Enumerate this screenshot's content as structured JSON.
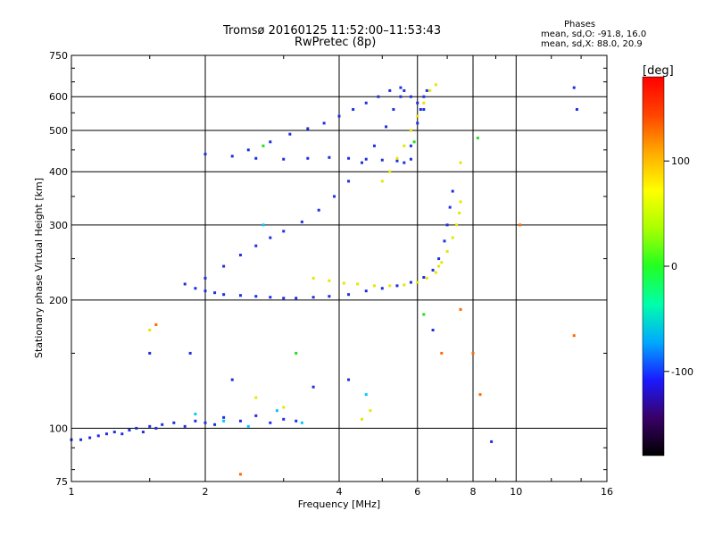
{
  "header": {
    "title_line1": "Tromsø 20160125 11:52:00–11:53:43",
    "title_line2": "RwPretec (8p)",
    "legend_title": "Phases",
    "legend_o": "mean, sd,O: -91.8, 16.0",
    "legend_x": "mean, sd,X:  88.0, 20.9"
  },
  "colorbar": {
    "label": "[deg]",
    "ticks": [
      {
        "value": 100,
        "label": "100"
      },
      {
        "value": 0,
        "label": "0"
      },
      {
        "value": -100,
        "label": "-100"
      }
    ],
    "range": [
      -180,
      180
    ],
    "colors": [
      "#000000",
      "#3a0066",
      "#1a1aff",
      "#00aaff",
      "#00ffaa",
      "#22ff22",
      "#aaff00",
      "#ffff00",
      "#ffaa00",
      "#ff4400",
      "#ff0000"
    ]
  },
  "chart_data": {
    "type": "scatter",
    "title": "Tromsø 20160125 11:52:00–11:53:43",
    "subtitle": "RwPretec (8p)",
    "xlabel": "Frequency [MHz]",
    "ylabel": "Stationary phase Virtual Height [km]",
    "x_scale": "log",
    "y_scale": "log",
    "xlim": [
      1,
      16
    ],
    "ylim": [
      75,
      750
    ],
    "grid": true,
    "x_ticks": [
      {
        "value": 1,
        "label": "1"
      },
      {
        "value": 2,
        "label": "2"
      },
      {
        "value": 4,
        "label": "4"
      },
      {
        "value": 6,
        "label": "6"
      },
      {
        "value": 8,
        "label": "8"
      },
      {
        "value": 10,
        "label": "10"
      },
      {
        "value": 16,
        "label": "16"
      }
    ],
    "y_ticks": [
      {
        "value": 75,
        "label": "75"
      },
      {
        "value": 100,
        "label": "100"
      },
      {
        "value": 200,
        "label": "200"
      },
      {
        "value": 300,
        "label": "300"
      },
      {
        "value": 400,
        "label": "400"
      },
      {
        "value": 500,
        "label": "500"
      },
      {
        "value": 600,
        "label": "600"
      },
      {
        "value": 750,
        "label": "750"
      }
    ],
    "series": [
      {
        "name": "",
        "color": "#1e2fe0",
        "points": [
          [
            1.0,
            94
          ],
          [
            1.05,
            94
          ],
          [
            1.1,
            95
          ],
          [
            1.15,
            96
          ],
          [
            1.2,
            97
          ],
          [
            1.25,
            98
          ],
          [
            1.3,
            97
          ],
          [
            1.35,
            99
          ],
          [
            1.4,
            100
          ],
          [
            1.45,
            98
          ],
          [
            1.5,
            101
          ],
          [
            1.55,
            100
          ],
          [
            1.6,
            102
          ],
          [
            1.7,
            103
          ],
          [
            1.8,
            101
          ],
          [
            1.9,
            104
          ],
          [
            2.0,
            103
          ],
          [
            2.1,
            102
          ],
          [
            2.2,
            106
          ],
          [
            2.4,
            104
          ],
          [
            2.6,
            107
          ],
          [
            2.8,
            103
          ],
          [
            3.0,
            105
          ],
          [
            3.2,
            104
          ],
          [
            1.8,
            218
          ],
          [
            1.9,
            213
          ],
          [
            2.0,
            210
          ],
          [
            2.1,
            208
          ],
          [
            2.2,
            206
          ],
          [
            2.4,
            205
          ],
          [
            2.6,
            204
          ],
          [
            2.8,
            203
          ],
          [
            3.0,
            202
          ],
          [
            3.2,
            202
          ],
          [
            3.5,
            203
          ],
          [
            3.8,
            204
          ],
          [
            4.2,
            206
          ],
          [
            4.6,
            210
          ],
          [
            5.0,
            213
          ],
          [
            5.4,
            216
          ],
          [
            5.8,
            220
          ],
          [
            6.2,
            226
          ],
          [
            6.5,
            235
          ],
          [
            6.7,
            250
          ],
          [
            6.9,
            275
          ],
          [
            7.0,
            300
          ],
          [
            7.1,
            330
          ],
          [
            7.2,
            360
          ],
          [
            2.0,
            225
          ],
          [
            2.2,
            240
          ],
          [
            2.4,
            255
          ],
          [
            2.6,
            268
          ],
          [
            2.8,
            280
          ],
          [
            3.0,
            290
          ],
          [
            3.3,
            305
          ],
          [
            3.6,
            325
          ],
          [
            3.9,
            350
          ],
          [
            4.2,
            380
          ],
          [
            4.5,
            420
          ],
          [
            4.8,
            460
          ],
          [
            5.1,
            510
          ],
          [
            5.3,
            560
          ],
          [
            5.5,
            600
          ],
          [
            5.6,
            620
          ],
          [
            2.0,
            440
          ],
          [
            2.3,
            435
          ],
          [
            2.6,
            430
          ],
          [
            3.0,
            428
          ],
          [
            3.4,
            430
          ],
          [
            3.8,
            432
          ],
          [
            4.2,
            430
          ],
          [
            4.6,
            428
          ],
          [
            5.0,
            426
          ],
          [
            5.4,
            424
          ],
          [
            5.8,
            428
          ],
          [
            2.5,
            450
          ],
          [
            2.8,
            470
          ],
          [
            3.1,
            490
          ],
          [
            3.4,
            505
          ],
          [
            3.7,
            520
          ],
          [
            4.0,
            540
          ],
          [
            4.3,
            560
          ],
          [
            4.6,
            580
          ],
          [
            4.9,
            600
          ],
          [
            5.2,
            620
          ],
          [
            5.5,
            630
          ],
          [
            5.8,
            600
          ],
          [
            6.0,
            580
          ],
          [
            6.2,
            560
          ],
          [
            5.6,
            420
          ],
          [
            5.8,
            460
          ],
          [
            6.0,
            520
          ],
          [
            6.1,
            560
          ],
          [
            6.2,
            600
          ],
          [
            6.3,
            620
          ],
          [
            1.5,
            150
          ],
          [
            1.85,
            150
          ],
          [
            2.3,
            130
          ],
          [
            3.5,
            125
          ],
          [
            4.2,
            130
          ],
          [
            6.5,
            170
          ],
          [
            8.8,
            93
          ],
          [
            13.5,
            630
          ],
          [
            13.7,
            560
          ]
        ]
      },
      {
        "name": "",
        "color": "#e6e600",
        "points": [
          [
            3.5,
            225
          ],
          [
            3.8,
            222
          ],
          [
            4.1,
            219
          ],
          [
            4.4,
            218
          ],
          [
            4.8,
            216
          ],
          [
            5.2,
            216
          ],
          [
            5.6,
            217
          ],
          [
            6.0,
            220
          ],
          [
            6.3,
            225
          ],
          [
            6.6,
            232
          ],
          [
            6.8,
            245
          ],
          [
            7.0,
            260
          ],
          [
            7.2,
            280
          ],
          [
            7.35,
            300
          ],
          [
            7.45,
            320
          ],
          [
            7.5,
            340
          ],
          [
            5.0,
            380
          ],
          [
            5.2,
            400
          ],
          [
            5.4,
            430
          ],
          [
            5.6,
            460
          ],
          [
            5.8,
            500
          ],
          [
            6.0,
            540
          ],
          [
            6.2,
            580
          ],
          [
            6.4,
            620
          ],
          [
            6.6,
            640
          ],
          [
            4.5,
            105
          ],
          [
            4.7,
            110
          ],
          [
            2.6,
            118
          ],
          [
            3.0,
            112
          ],
          [
            1.5,
            170
          ],
          [
            6.7,
            240
          ],
          [
            7.5,
            420
          ]
        ]
      },
      {
        "name": "",
        "color": "#00c8ff",
        "points": [
          [
            2.2,
            104
          ],
          [
            2.5,
            101
          ],
          [
            2.9,
            110
          ],
          [
            3.3,
            103
          ],
          [
            1.9,
            108
          ],
          [
            2.7,
            300
          ],
          [
            4.6,
            120
          ]
        ]
      },
      {
        "name": "",
        "color": "#ff6a00",
        "points": [
          [
            2.4,
            78
          ],
          [
            1.55,
            175
          ],
          [
            7.5,
            190
          ],
          [
            8.0,
            150
          ],
          [
            10.2,
            300
          ],
          [
            13.5,
            165
          ],
          [
            6.8,
            150
          ],
          [
            8.3,
            120
          ]
        ]
      },
      {
        "name": "",
        "color": "#22dd22",
        "points": [
          [
            5.9,
            470
          ],
          [
            6.2,
            185
          ],
          [
            8.2,
            480
          ],
          [
            3.2,
            150
          ],
          [
            2.7,
            460
          ]
        ]
      }
    ]
  }
}
